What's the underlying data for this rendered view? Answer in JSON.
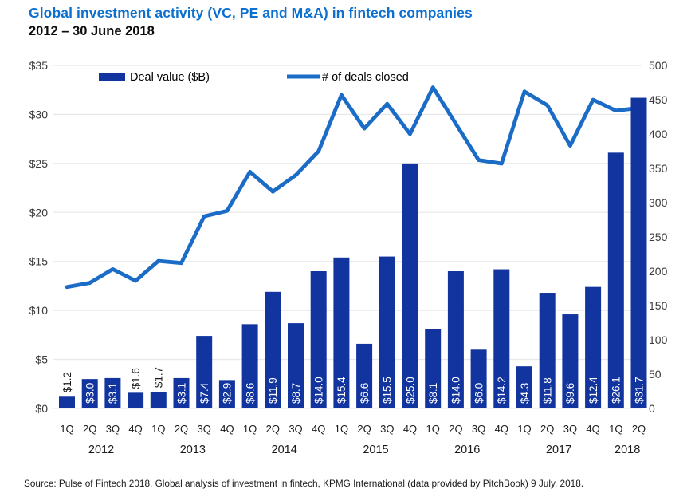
{
  "colors": {
    "title": "#0b70d1",
    "bar": "#12349e",
    "line": "#1b6cc7",
    "grid": "#e9e9e9",
    "axis_text": "#3b3b3b",
    "bar_label_inside": "#ffffff",
    "bar_label_outside": "#1a1a1a",
    "quarter_label": "#1a1a1a"
  },
  "source": "Source: Pulse of Fintech 2018, Global analysis of investment in fintech, KPMG International (data provided by PitchBook) 9 July, 2018.",
  "chart_data": {
    "type": "combo-bar-line",
    "title": "Global investment activity (VC, PE and M&A) in fintech companies",
    "subtitle": "2012 – 30 June 2018",
    "legend_position": "top",
    "quarters": [
      "1Q",
      "2Q",
      "3Q",
      "4Q",
      "1Q",
      "2Q",
      "3Q",
      "4Q",
      "1Q",
      "2Q",
      "3Q",
      "4Q",
      "1Q",
      "2Q",
      "3Q",
      "4Q",
      "1Q",
      "2Q",
      "3Q",
      "4Q",
      "1Q",
      "2Q",
      "3Q",
      "4Q",
      "1Q",
      "2Q"
    ],
    "years": [
      {
        "label": "2012",
        "count": 4
      },
      {
        "label": "2013",
        "count": 4
      },
      {
        "label": "2014",
        "count": 4
      },
      {
        "label": "2015",
        "count": 4
      },
      {
        "label": "2016",
        "count": 4
      },
      {
        "label": "2017",
        "count": 4
      },
      {
        "label": "2018",
        "count": 2
      }
    ],
    "series": [
      {
        "name": "Deal value ($B)",
        "type": "bar",
        "axis": "left",
        "values": [
          1.2,
          3.0,
          3.1,
          1.6,
          1.7,
          3.1,
          7.4,
          2.9,
          8.6,
          11.9,
          8.7,
          14.0,
          15.4,
          6.6,
          15.5,
          25.0,
          8.1,
          14.0,
          6.0,
          14.2,
          4.3,
          11.8,
          9.6,
          12.4,
          26.1,
          31.7
        ]
      },
      {
        "name": "# of deals closed",
        "type": "line",
        "axis": "right",
        "values": [
          177,
          183,
          203,
          186,
          215,
          212,
          280,
          288,
          345,
          316,
          340,
          375,
          457,
          408,
          444,
          400,
          468,
          415,
          362,
          357,
          462,
          442,
          383,
          450,
          434,
          438
        ]
      }
    ],
    "left_axis": {
      "min": 0,
      "max": 35,
      "step": 5,
      "ticks": [
        "$0",
        "$5",
        "$10",
        "$15",
        "$20",
        "$25",
        "$30",
        "$35"
      ]
    },
    "right_axis": {
      "min": 0,
      "max": 500,
      "step": 50,
      "ticks": [
        "0",
        "50",
        "100",
        "150",
        "200",
        "250",
        "300",
        "350",
        "400",
        "450",
        "500"
      ]
    },
    "grid": "horizontal"
  }
}
